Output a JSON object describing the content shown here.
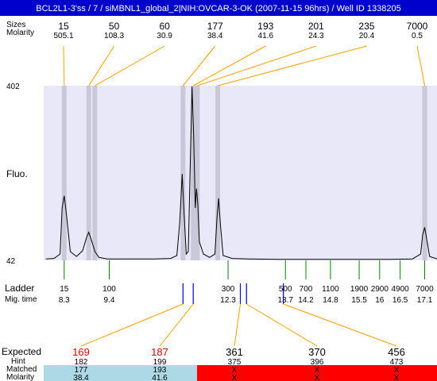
{
  "title": "BCL2L1-3'ss / 7 / siMBNL1_global_2|NIH:OVCAR-3-OK (2007-11-15 96hrs) / Well ID 1338205",
  "labels": {
    "sizes_row": "Sizes",
    "molarity_row": "Molarity",
    "fluo": "Fluo.",
    "ladder": "Ladder",
    "mig_time": "Mig. time",
    "expected": "Expected",
    "hint": "Hint",
    "matched": "Matched",
    "molarity_bottom": "Molarity"
  },
  "colors": {
    "title_bar": "#0000cc",
    "plot_bg": "#e8e8f8",
    "peak_band": "#c8c8d8",
    "connector": "#f5a000",
    "ladder_tick": "#008000",
    "marker": "#0000cc",
    "expected_red": "#e00000",
    "matched_ok": "#add8e6",
    "matched_fail": "#ff0000"
  },
  "chart_data": {
    "type": "line",
    "title": "BCL2L1-3'ss / 7 / siMBNL1_global_2|NIH:OVCAR-3-OK (2007-11-15 96hrs) / Well ID 1338205",
    "ylabel": "Fluo.",
    "xlabel": "Mig. time",
    "ylim": [
      42,
      402
    ],
    "xlim": [
      7.8,
      17.4
    ],
    "y_ticks": [
      "402",
      "42"
    ],
    "peaks": [
      {
        "size": "15",
        "molarity": "505.1",
        "time": 8.3
      },
      {
        "size": "50",
        "molarity": "108.3",
        "time": 8.9
      },
      {
        "size": "60",
        "molarity": "30.9",
        "time": 9.05
      },
      {
        "size": "177",
        "molarity": "38.4",
        "time": 11.2
      },
      {
        "size": "193",
        "molarity": "41.6",
        "time": 11.45
      },
      {
        "size": "201",
        "molarity": "24.3",
        "time": 11.55
      },
      {
        "size": "235",
        "molarity": "20.4",
        "time": 12.05
      },
      {
        "size": "7000",
        "molarity": "0.5",
        "time": 17.1
      }
    ],
    "trace": [
      [
        7.85,
        45
      ],
      [
        8.05,
        46
      ],
      [
        8.2,
        55
      ],
      [
        8.25,
        150
      ],
      [
        8.3,
        175
      ],
      [
        8.35,
        140
      ],
      [
        8.45,
        60
      ],
      [
        8.6,
        50
      ],
      [
        8.75,
        62
      ],
      [
        8.85,
        90
      ],
      [
        8.9,
        100
      ],
      [
        8.98,
        80
      ],
      [
        9.05,
        60
      ],
      [
        9.15,
        48
      ],
      [
        9.35,
        45
      ],
      [
        9.8,
        45
      ],
      [
        10.5,
        45
      ],
      [
        10.9,
        46
      ],
      [
        11.05,
        52
      ],
      [
        11.12,
        120
      ],
      [
        11.18,
        220
      ],
      [
        11.22,
        150
      ],
      [
        11.28,
        55
      ],
      [
        11.33,
        60
      ],
      [
        11.38,
        250
      ],
      [
        11.42,
        400
      ],
      [
        11.46,
        300
      ],
      [
        11.5,
        150
      ],
      [
        11.53,
        190
      ],
      [
        11.56,
        160
      ],
      [
        11.6,
        80
      ],
      [
        11.7,
        55
      ],
      [
        11.85,
        48
      ],
      [
        11.98,
        55
      ],
      [
        12.03,
        130
      ],
      [
        12.07,
        170
      ],
      [
        12.11,
        120
      ],
      [
        12.18,
        52
      ],
      [
        12.4,
        46
      ],
      [
        12.8,
        45
      ],
      [
        13.5,
        44
      ],
      [
        14.5,
        44
      ],
      [
        15.5,
        44
      ],
      [
        16.3,
        44
      ],
      [
        16.8,
        45
      ],
      [
        17.0,
        55
      ],
      [
        17.05,
        95
      ],
      [
        17.1,
        110
      ],
      [
        17.15,
        85
      ],
      [
        17.22,
        50
      ],
      [
        17.4,
        45
      ]
    ],
    "ladder": [
      {
        "size": "15",
        "time": "8.3",
        "t": 8.3
      },
      {
        "size": "100",
        "time": "9.4",
        "t": 9.4
      },
      {
        "size": "300",
        "time": "12.3",
        "t": 12.3
      },
      {
        "size": "500",
        "time": "13.7",
        "t": 13.7
      },
      {
        "size": "700",
        "time": "14.2",
        "t": 14.2
      },
      {
        "size": "1100",
        "time": "14.8",
        "t": 14.8
      },
      {
        "size": "1900",
        "time": "15.5",
        "t": 15.5
      },
      {
        "size": "2900",
        "time": "16",
        "t": 16.0
      },
      {
        "size": "4900",
        "time": "16.5",
        "t": 16.5
      },
      {
        "size": "7000",
        "time": "17.1",
        "t": 17.1
      }
    ],
    "expected": [
      {
        "expected": "169",
        "hint": "182",
        "matched": "177",
        "molarity": "38.4",
        "t": 11.2,
        "highlight": true,
        "ok": true
      },
      {
        "expected": "187",
        "hint": "199",
        "matched": "193",
        "molarity": "41.6",
        "t": 11.45,
        "highlight": true,
        "ok": true
      },
      {
        "expected": "361",
        "hint": "375",
        "matched": "X",
        "molarity": "X",
        "t": 12.6,
        "highlight": false,
        "ok": false
      },
      {
        "expected": "370",
        "hint": "396",
        "matched": "X",
        "molarity": "X",
        "t": 12.75,
        "highlight": false,
        "ok": false
      },
      {
        "expected": "456",
        "hint": "473",
        "matched": "X",
        "molarity": "X",
        "t": 13.65,
        "highlight": false,
        "ok": false
      }
    ]
  }
}
